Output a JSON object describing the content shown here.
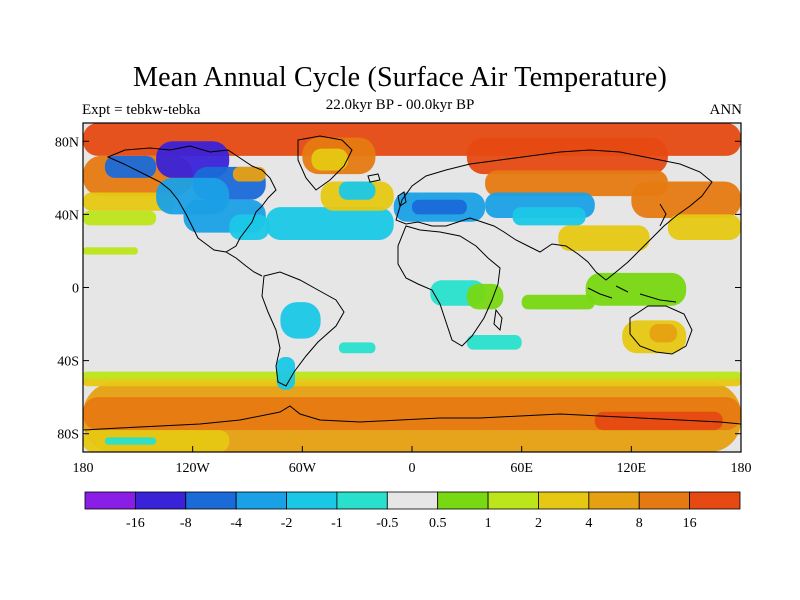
{
  "title": "Mean Annual Cycle (Surface Air Temperature)",
  "subtitle": "22.0kyr BP - 00.0kyr BP",
  "left_label": "Expt = tebkw-tebka",
  "right_label": "ANN",
  "map": {
    "projection": "cylindrical-equidistant",
    "lon_range": [
      -180,
      180
    ],
    "lat_range": [
      -90,
      90
    ],
    "lat_ticks": [
      {
        "value": 80,
        "label": "80N"
      },
      {
        "value": 40,
        "label": "40N"
      },
      {
        "value": 0,
        "label": "0"
      },
      {
        "value": -40,
        "label": "40S"
      },
      {
        "value": -80,
        "label": "80S"
      }
    ],
    "lon_ticks": [
      {
        "value": -180,
        "label": "180"
      },
      {
        "value": -120,
        "label": "120W"
      },
      {
        "value": -60,
        "label": "60W"
      },
      {
        "value": 0,
        "label": "0"
      },
      {
        "value": 60,
        "label": "60E"
      },
      {
        "value": 120,
        "label": "120E"
      },
      {
        "value": 180,
        "label": "180"
      }
    ]
  },
  "colorbar": {
    "colors": [
      "#8a1ee6",
      "#3a22d8",
      "#1a6ad8",
      "#1aa0e6",
      "#1ac8e6",
      "#28e0cc",
      "#e6e6e6",
      "#78d812",
      "#bce61a",
      "#e6c812",
      "#e6a012",
      "#e67a12",
      "#e64a12"
    ],
    "labels": [
      "-16",
      "-8",
      "-4",
      "-2",
      "-1",
      "-0.5",
      "0.5",
      "1",
      "2",
      "4",
      "8",
      "16"
    ]
  },
  "regions": [
    {
      "name": "southern-ocean-band",
      "lon": [
        -180,
        180
      ],
      "lat": [
        -90,
        -52
      ],
      "color": "#e6a012"
    },
    {
      "name": "southern-ocean-yellow",
      "lon": [
        -180,
        180
      ],
      "lat": [
        -54,
        -49
      ],
      "color": "#e6c812"
    },
    {
      "name": "southern-ocean-green",
      "lon": [
        -180,
        180
      ],
      "lat": [
        -50,
        -46
      ],
      "color": "#bce61a"
    },
    {
      "name": "antarctic-orange",
      "lon": [
        -180,
        180
      ],
      "lat": [
        -78,
        -60
      ],
      "color": "#e67a12"
    },
    {
      "name": "antarctic-red-east",
      "lon": [
        100,
        170
      ],
      "lat": [
        -78,
        -68
      ],
      "color": "#e64a12"
    },
    {
      "name": "antarctic-yellow-west",
      "lon": [
        -180,
        -100
      ],
      "lat": [
        -90,
        -78
      ],
      "color": "#e6c812"
    },
    {
      "name": "ross-cyan",
      "lon": [
        -168,
        -140
      ],
      "lat": [
        -86,
        -82
      ],
      "color": "#28e0cc"
    },
    {
      "name": "arctic-red",
      "lon": [
        -180,
        180
      ],
      "lat": [
        72,
        90
      ],
      "color": "#e64a12"
    },
    {
      "name": "siberia-red",
      "lon": [
        30,
        140
      ],
      "lat": [
        62,
        82
      ],
      "color": "#e64a12"
    },
    {
      "name": "north-pacific-orange",
      "lon": [
        -180,
        -120
      ],
      "lat": [
        50,
        72
      ],
      "color": "#e67a12"
    },
    {
      "name": "north-pacific-yellow",
      "lon": [
        -180,
        -130
      ],
      "lat": [
        42,
        52
      ],
      "color": "#e6c812"
    },
    {
      "name": "north-pacific-green",
      "lon": [
        -180,
        -140
      ],
      "lat": [
        34,
        42
      ],
      "color": "#bce61a"
    },
    {
      "name": "asia-orange",
      "lon": [
        40,
        140
      ],
      "lat": [
        50,
        64
      ],
      "color": "#e67a12"
    },
    {
      "name": "west-pacific-orange",
      "lon": [
        120,
        180
      ],
      "lat": [
        38,
        58
      ],
      "color": "#e67a12"
    },
    {
      "name": "west-pacific-yellow",
      "lon": [
        140,
        180
      ],
      "lat": [
        26,
        40
      ],
      "color": "#e6c812"
    },
    {
      "name": "asia-yellow",
      "lon": [
        80,
        130
      ],
      "lat": [
        20,
        34
      ],
      "color": "#e6c812"
    },
    {
      "name": "indonesia-green",
      "lon": [
        95,
        150
      ],
      "lat": [
        -10,
        8
      ],
      "color": "#78d812"
    },
    {
      "name": "australia-yellow",
      "lon": [
        115,
        150
      ],
      "lat": [
        -36,
        -18
      ],
      "color": "#e6c812"
    },
    {
      "name": "australia-orange",
      "lon": [
        130,
        145
      ],
      "lat": [
        -30,
        -20
      ],
      "color": "#e6a012"
    },
    {
      "name": "indian-ocean-green",
      "lon": [
        60,
        100
      ],
      "lat": [
        -12,
        -4
      ],
      "color": "#78d812"
    },
    {
      "name": "pacific-green-band",
      "lon": [
        -180,
        -150
      ],
      "lat": [
        18,
        22
      ],
      "color": "#bce61a"
    },
    {
      "name": "alaska-blue",
      "lon": [
        -168,
        -140
      ],
      "lat": [
        60,
        72
      ],
      "color": "#1a6ad8"
    },
    {
      "name": "canada-deepblue",
      "lon": [
        -140,
        -100
      ],
      "lat": [
        60,
        80
      ],
      "color": "#3a22d8"
    },
    {
      "name": "canada-blue",
      "lon": [
        -120,
        -80
      ],
      "lat": [
        48,
        66
      ],
      "color": "#1a6ad8"
    },
    {
      "name": "canada-cyan",
      "lon": [
        -140,
        -100
      ],
      "lat": [
        40,
        60
      ],
      "color": "#1aa0e6"
    },
    {
      "name": "hudson-orange",
      "lon": [
        -98,
        -80
      ],
      "lat": [
        58,
        66
      ],
      "color": "#e6a012"
    },
    {
      "name": "usa-cyan",
      "lon": [
        -125,
        -80
      ],
      "lat": [
        30,
        48
      ],
      "color": "#1aa0e6"
    },
    {
      "name": "usa-teal",
      "lon": [
        -100,
        -78
      ],
      "lat": [
        26,
        40
      ],
      "color": "#1ac8e6"
    },
    {
      "name": "atlantic-cyan",
      "lon": [
        -80,
        -10
      ],
      "lat": [
        26,
        44
      ],
      "color": "#1ac8e6"
    },
    {
      "name": "atlantic-yellow",
      "lon": [
        -50,
        -10
      ],
      "lat": [
        42,
        58
      ],
      "color": "#e6c812"
    },
    {
      "name": "greenland-orange",
      "lon": [
        -60,
        -20
      ],
      "lat": [
        62,
        82
      ],
      "color": "#e67a12"
    },
    {
      "name": "greenland-yellow",
      "lon": [
        -55,
        -35
      ],
      "lat": [
        64,
        76
      ],
      "color": "#e6c812"
    },
    {
      "name": "north-atlantic-cyan",
      "lon": [
        -40,
        -20
      ],
      "lat": [
        48,
        58
      ],
      "color": "#1ac8e6"
    },
    {
      "name": "europe-cyan",
      "lon": [
        -10,
        40
      ],
      "lat": [
        36,
        52
      ],
      "color": "#1aa0e6"
    },
    {
      "name": "europe-blue",
      "lon": [
        0,
        30
      ],
      "lat": [
        40,
        48
      ],
      "color": "#1a6ad8"
    },
    {
      "name": "central-asia-cyan",
      "lon": [
        40,
        100
      ],
      "lat": [
        38,
        52
      ],
      "color": "#1aa0e6"
    },
    {
      "name": "tibet-cyan",
      "lon": [
        55,
        95
      ],
      "lat": [
        34,
        44
      ],
      "color": "#1ac8e6"
    },
    {
      "name": "south-america-cyan",
      "lon": [
        -72,
        -50
      ],
      "lat": [
        -28,
        -8
      ],
      "color": "#1ac8e6"
    },
    {
      "name": "patagonia-cyan",
      "lon": [
        -74,
        -64
      ],
      "lat": [
        -56,
        -38
      ],
      "color": "#1ac8e6"
    },
    {
      "name": "africa-cyan",
      "lon": [
        10,
        40
      ],
      "lat": [
        -10,
        4
      ],
      "color": "#28e0cc"
    },
    {
      "name": "east-africa-green",
      "lon": [
        30,
        50
      ],
      "lat": [
        -12,
        2
      ],
      "color": "#78d812"
    },
    {
      "name": "indian-ocean-cyan",
      "lon": [
        30,
        60
      ],
      "lat": [
        -34,
        -26
      ],
      "color": "#28e0cc"
    },
    {
      "name": "south-atlantic-cyan",
      "lon": [
        -40,
        -20
      ],
      "lat": [
        -36,
        -30
      ],
      "color": "#28e0cc"
    }
  ]
}
